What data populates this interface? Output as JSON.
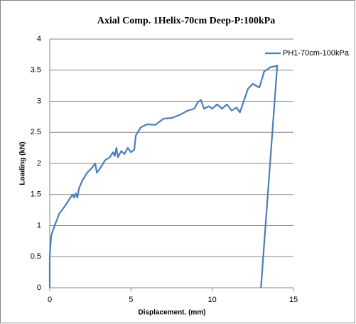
{
  "chart_data": {
    "type": "line",
    "title": "Axial Comp. 1Helix-70cm Deep-P:100kPa",
    "xlabel": "Displacement. (mm)",
    "ylabel": "Loading (kN)",
    "x": [
      0,
      0,
      0.05,
      0.1,
      0.3,
      0.6,
      0.9,
      1.2,
      1.4,
      1.5,
      1.6,
      1.7,
      1.8,
      2.0,
      2.3,
      2.6,
      2.8,
      2.9,
      3.1,
      3.4,
      3.7,
      3.9,
      4.0,
      4.1,
      4.2,
      4.4,
      4.6,
      4.8,
      5.0,
      5.2,
      5.3,
      5.6,
      6.0,
      6.5,
      7.0,
      7.5,
      8.0,
      8.5,
      8.9,
      9.1,
      9.3,
      9.5,
      9.8,
      10.0,
      10.3,
      10.6,
      10.9,
      11.2,
      11.5,
      11.7,
      11.9,
      12.2,
      12.5,
      12.9,
      13.2,
      13.6,
      14.0,
      13.0
    ],
    "series": [
      {
        "name": "PH1-70cm-100kPa",
        "color": "#4a7ebb",
        "values": [
          0,
          0.5,
          0.7,
          0.85,
          1.0,
          1.2,
          1.3,
          1.42,
          1.5,
          1.45,
          1.52,
          1.45,
          1.6,
          1.72,
          1.85,
          1.93,
          2.0,
          1.85,
          1.92,
          2.05,
          2.1,
          2.18,
          2.12,
          2.25,
          2.1,
          2.2,
          2.15,
          2.25,
          2.18,
          2.22,
          2.45,
          2.58,
          2.63,
          2.62,
          2.72,
          2.73,
          2.78,
          2.85,
          2.88,
          2.98,
          3.02,
          2.88,
          2.92,
          2.88,
          2.95,
          2.88,
          2.95,
          2.85,
          2.9,
          2.82,
          2.97,
          3.2,
          3.28,
          3.22,
          3.48,
          3.55,
          3.57,
          0
        ]
      }
    ],
    "xlim": [
      0,
      15
    ],
    "xticks": [
      0,
      5,
      10,
      15
    ],
    "ylim": [
      0,
      4
    ],
    "yticks": [
      0,
      0.5,
      1,
      1.5,
      2,
      2.5,
      3,
      3.5,
      4
    ],
    "grid": true,
    "legend": "top-right"
  }
}
